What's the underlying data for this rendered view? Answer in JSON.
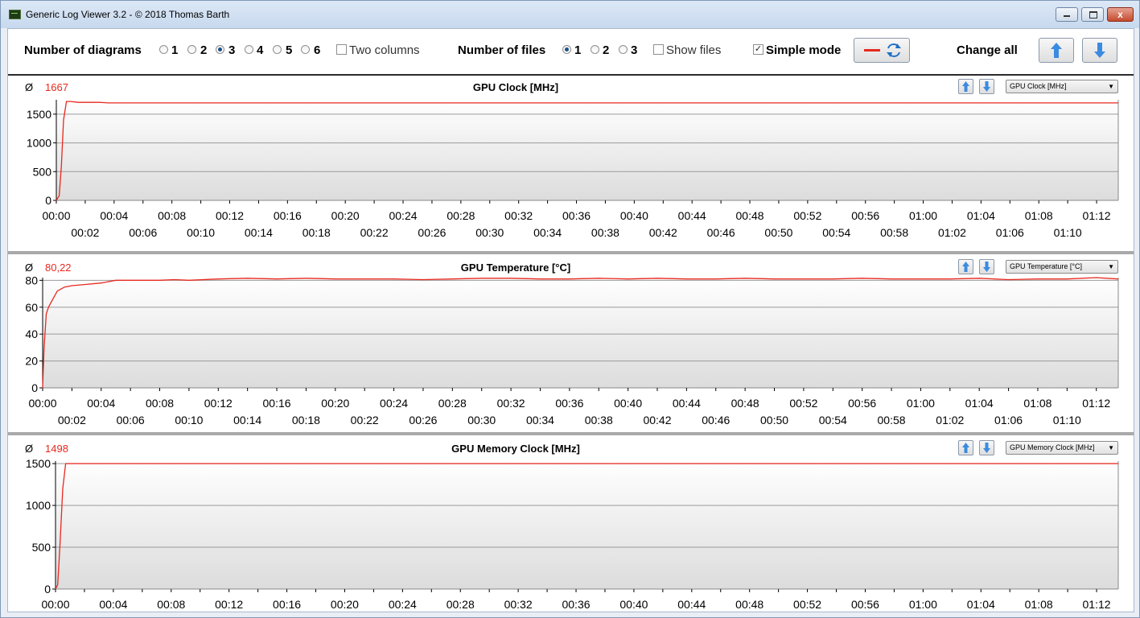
{
  "window": {
    "title": "Generic Log Viewer 3.2 - © 2018 Thomas Barth",
    "close_glyph": "x"
  },
  "toolbar": {
    "diagrams_label": "Number of diagrams",
    "diagram_options": [
      "1",
      "2",
      "3",
      "4",
      "5",
      "6"
    ],
    "diagram_selected": "3",
    "two_columns_label": "Two columns",
    "two_columns_checked": false,
    "files_label": "Number of files",
    "file_options": [
      "1",
      "2",
      "3"
    ],
    "file_selected": "1",
    "show_files_label": "Show files",
    "show_files_checked": false,
    "simple_mode_label": "Simple mode",
    "simple_mode_checked": true,
    "change_all_label": "Change all"
  },
  "icons": {
    "line_style": "red-line-swatch-icon",
    "refresh": "refresh-icon",
    "up": "arrow-up-icon",
    "down": "arrow-down-icon",
    "avg": "average-symbol"
  },
  "colors": {
    "series_line": "#e8281e",
    "grid": "#9a9a9a",
    "avg_text": "#e8281e"
  },
  "x_tick_labels_upper": [
    "00:00",
    "00:04",
    "00:08",
    "00:12",
    "00:16",
    "00:20",
    "00:24",
    "00:28",
    "00:32",
    "00:36",
    "00:40",
    "00:44",
    "00:48",
    "00:52",
    "00:56",
    "01:00",
    "01:04",
    "01:08",
    "01:12"
  ],
  "x_tick_labels_lower": [
    "00:02",
    "00:06",
    "00:10",
    "00:14",
    "00:18",
    "00:22",
    "00:26",
    "00:30",
    "00:34",
    "00:38",
    "00:42",
    "00:46",
    "00:50",
    "00:54",
    "00:58",
    "01:02",
    "01:06",
    "01:10"
  ],
  "panels": [
    {
      "title": "GPU Clock [MHz]",
      "avg_symbol": "Ø",
      "avg": "1667",
      "dropdown": "GPU Clock [MHz]",
      "yticks": [
        "1500",
        "1000",
        "500",
        "0"
      ]
    },
    {
      "title": "GPU Temperature [°C]",
      "avg_symbol": "Ø",
      "avg": "80,22",
      "dropdown": "GPU Temperature [°C]",
      "yticks": [
        "80",
        "60",
        "40",
        "20",
        "0"
      ]
    },
    {
      "title": "GPU Memory Clock [MHz]",
      "avg_symbol": "Ø",
      "avg": "1498",
      "dropdown": "GPU Memory Clock [MHz]",
      "yticks": [
        "1500",
        "1000",
        "500",
        "0"
      ]
    }
  ],
  "chart_data": [
    {
      "type": "line",
      "title": "GPU Clock [MHz]",
      "ylim": [
        0,
        1750
      ],
      "yticks": [
        0,
        500,
        1000,
        1500
      ],
      "xlim_minutes": [
        0,
        73.5
      ],
      "grid": true,
      "series": [
        {
          "x": [
            0,
            0.2,
            0.35,
            0.5,
            0.7,
            1.0,
            1.5,
            3.0,
            3.6,
            10,
            20,
            30,
            40,
            50,
            60,
            70,
            73.5
          ],
          "values": [
            0,
            80,
            600,
            1400,
            1720,
            1720,
            1705,
            1705,
            1695,
            1695,
            1695,
            1695,
            1695,
            1695,
            1695,
            1695,
            1695
          ]
        }
      ]
    },
    {
      "type": "line",
      "title": "GPU Temperature [°C]",
      "ylim": [
        0,
        82
      ],
      "yticks": [
        0,
        20,
        40,
        60,
        80
      ],
      "xlim_minutes": [
        0,
        73.5
      ],
      "grid": true,
      "series": [
        {
          "x": [
            0,
            0.1,
            0.25,
            0.4,
            0.7,
            1.0,
            1.5,
            2,
            3,
            4,
            5,
            6,
            8,
            9,
            10,
            12,
            14,
            16,
            18,
            20,
            22,
            24,
            26,
            28,
            30,
            32,
            34,
            36,
            38,
            40,
            42,
            44,
            46,
            48,
            50,
            52,
            54,
            56,
            58,
            60,
            62,
            64,
            66,
            68,
            70,
            72,
            73.5
          ],
          "values": [
            0,
            30,
            55,
            60,
            66,
            72,
            75,
            76,
            77,
            78,
            80,
            80,
            80,
            80.5,
            80,
            81,
            81.5,
            81,
            81.5,
            81,
            81,
            81,
            80.5,
            81,
            81.5,
            81.5,
            81,
            81,
            81.5,
            81,
            81.5,
            81,
            81,
            81.5,
            81,
            81,
            81,
            81.5,
            81,
            81,
            81,
            81.5,
            80.5,
            81,
            81,
            82,
            81
          ]
        }
      ]
    },
    {
      "type": "line",
      "title": "GPU Memory Clock [MHz]",
      "ylim": [
        0,
        1530
      ],
      "yticks": [
        0,
        500,
        1000,
        1500
      ],
      "xlim_minutes": [
        0,
        73.5
      ],
      "grid": true,
      "series": [
        {
          "x": [
            0,
            0.15,
            0.3,
            0.5,
            0.7,
            10,
            20,
            30,
            40,
            50,
            60,
            70,
            73.5
          ],
          "values": [
            0,
            50,
            500,
            1200,
            1500,
            1500,
            1500,
            1500,
            1500,
            1500,
            1500,
            1500,
            1500
          ]
        }
      ]
    }
  ]
}
